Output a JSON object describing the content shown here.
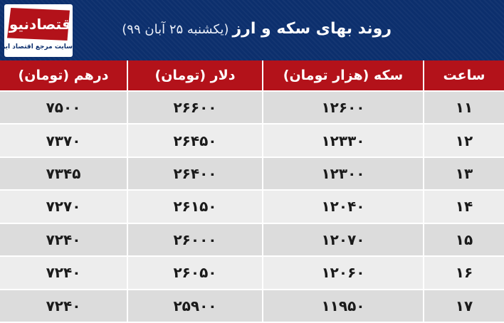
{
  "header": {
    "title": "روند بهای سکه و ارز",
    "subtitle": "(یکشنبه ۲۵ آبان ۹۹)"
  },
  "logo": {
    "name": "اقتصادنیوز",
    "tagline": "سایت مرجع اقتصاد ایران"
  },
  "table": {
    "headers": {
      "hour": "ساعت",
      "coin": "سکه (هزار تومان)",
      "dollar": "دلار (تومان)",
      "dirham": "درهم (تومان)"
    },
    "rows": [
      {
        "hour": "۱۱",
        "coin": "۱۲۶۰۰",
        "dollar": "۲۶۶۰۰",
        "dirham": "۷۵۰۰"
      },
      {
        "hour": "۱۲",
        "coin": "۱۲۳۳۰",
        "dollar": "۲۶۴۵۰",
        "dirham": "۷۳۷۰"
      },
      {
        "hour": "۱۳",
        "coin": "۱۲۳۰۰",
        "dollar": "۲۶۴۰۰",
        "dirham": "۷۳۴۵"
      },
      {
        "hour": "۱۴",
        "coin": "۱۲۰۴۰",
        "dollar": "۲۶۱۵۰",
        "dirham": "۷۲۷۰"
      },
      {
        "hour": "۱۵",
        "coin": "۱۲۰۷۰",
        "dollar": "۲۶۰۰۰",
        "dirham": "۷۲۴۰"
      },
      {
        "hour": "۱۶",
        "coin": "۱۲۰۶۰",
        "dollar": "۲۶۰۵۰",
        "dirham": "۷۲۴۰"
      },
      {
        "hour": "۱۷",
        "coin": "۱۱۹۵۰",
        "dollar": "۲۵۹۰۰",
        "dirham": "۷۲۴۰"
      }
    ]
  },
  "colors": {
    "title_bar": "#0c2f6d",
    "header_row": "#b3121a",
    "row_odd": "#dcdcdc",
    "row_even": "#ededed"
  }
}
